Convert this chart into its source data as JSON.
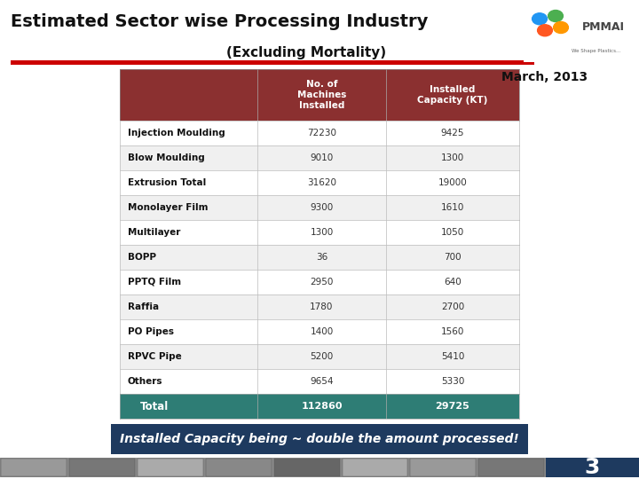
{
  "title_line1": "Estimated Sector wise Processing Industry",
  "title_line2": "(Excluding Mortality)",
  "date_label": "March, 2013",
  "col_headers": [
    "No. of\nMachines\nInstalled",
    "Installed\nCapacity (KT)"
  ],
  "rows": [
    [
      "Injection Moulding",
      "72230",
      "9425"
    ],
    [
      "Blow Moulding",
      "9010",
      "1300"
    ],
    [
      "Extrusion Total",
      "31620",
      "19000"
    ],
    [
      "Monolayer Film",
      "9300",
      "1610"
    ],
    [
      "Multilayer",
      "1300",
      "1050"
    ],
    [
      "BOPP",
      "36",
      "700"
    ],
    [
      "PPTQ Film",
      "2950",
      "640"
    ],
    [
      "Raffia",
      "1780",
      "2700"
    ],
    [
      "PO Pipes",
      "1400",
      "1560"
    ],
    [
      "RPVC Pipe",
      "5200",
      "5410"
    ],
    [
      "Others",
      "9654",
      "5330"
    ]
  ],
  "total_row": [
    "Total",
    "112860",
    "29725"
  ],
  "footer_text": "Installed Capacity being ~ double the amount processed!",
  "header_bg": "#8B3030",
  "header_text_color": "#FFFFFF",
  "total_bg": "#2E7D75",
  "total_text_color": "#FFFFFF",
  "row_bg_light": "#FFFFFF",
  "row_bg_dark": "#F0F0F0",
  "table_border_color": "#BBBBBB",
  "red_line_color": "#CC0000",
  "footer_bg": "#1E3A5F",
  "footer_text_color": "#FFFFFF",
  "page_bg": "#FFFFFF",
  "text_dark": "#111111",
  "number_color": "#333333",
  "page_num": "3",
  "page_num_bg": "#1E3A5F",
  "title_fontsize": 14,
  "subtitle_fontsize": 11,
  "date_fontsize": 10,
  "header_fontsize": 7.5,
  "row_fontsize": 7.5,
  "footer_fontsize": 10
}
